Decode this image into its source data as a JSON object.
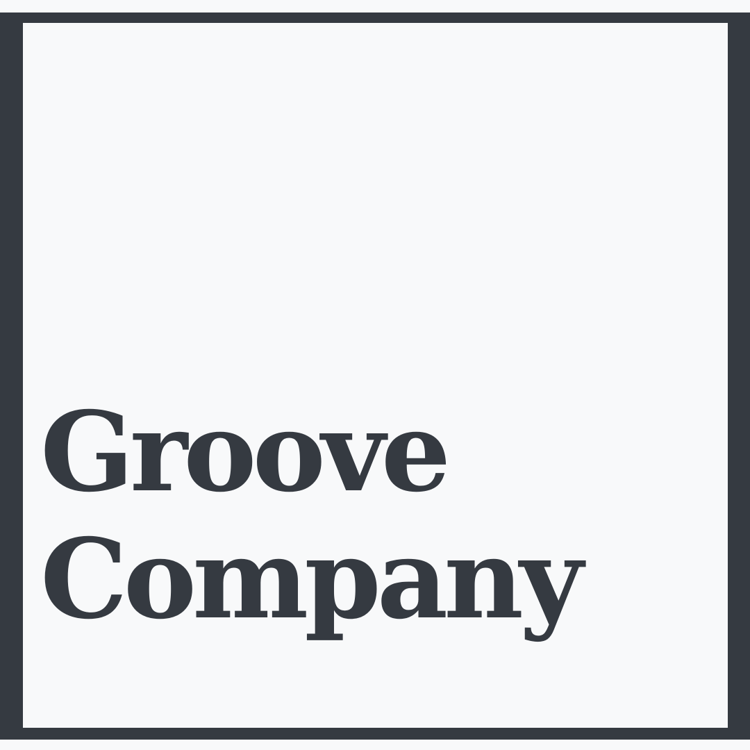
{
  "logo": {
    "line_1": "Groove",
    "line_2": "Company"
  },
  "colors": {
    "background": "#f8f9fa",
    "ink": "#353a41"
  }
}
